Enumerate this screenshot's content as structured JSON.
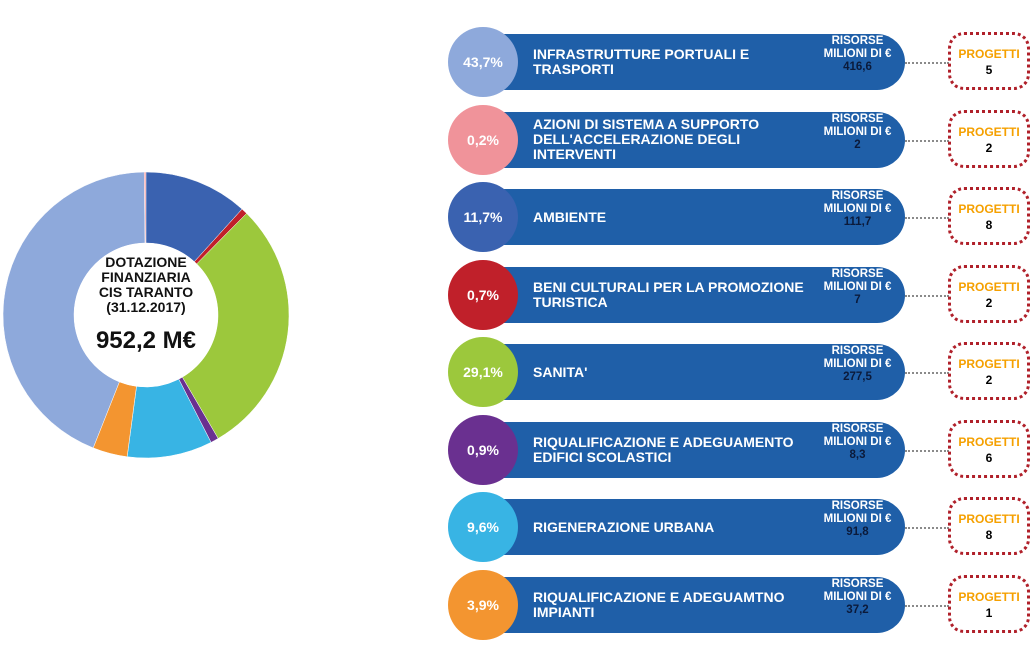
{
  "chart_data": {
    "type": "donut",
    "center_lines": [
      "DOTAZIONE",
      "FINANZIARIA",
      "CIS TARANTO",
      "(31.12.2017)"
    ],
    "center_value": "952,2 M€",
    "categories": [
      "INFRASTRUTTURE PORTUALI E TRASPORTI",
      "AZIONI DI SISTEMA A SUPPORTO DELL'ACCELERAZIONE DEGLI INTERVENTI",
      "AMBIENTE",
      "BENI CULTURALI PER LA PROMOZIONE TURISTICA",
      "SANITA'",
      "RIQUALIFICAZIONE E ADEGUAMENTO EDIFICI SCOLASTICI",
      "RIGENERAZIONE URBANA",
      "RIQUALIFICAZIONE E ADEGUAMTNO IMPIANTI"
    ],
    "values": [
      43.7,
      0.2,
      11.7,
      0.7,
      29.1,
      0.9,
      9.6,
      3.9
    ],
    "value_labels": [
      "43,7%",
      "0,2%",
      "11,7%",
      "0,7%",
      "29,1%",
      "0,9%",
      "9,6%",
      "3,9%"
    ],
    "colors": [
      "#8ea9db",
      "#f0939a",
      "#3a62b0",
      "#c0202a",
      "#9cc83c",
      "#6a3090",
      "#38b4e4",
      "#f39530"
    ],
    "resources_caption": [
      "RISORSE",
      "MILIONI DI €"
    ],
    "resources": [
      416.6,
      2,
      111.7,
      7,
      277.5,
      8.3,
      91.8,
      37.2
    ],
    "resources_labels": [
      "416,6",
      "2",
      "111,7",
      "7",
      "277,5",
      "8,3",
      "91,8",
      "37,2"
    ],
    "projects_caption": "PROGETTI",
    "projects": [
      5,
      2,
      8,
      2,
      2,
      6,
      8,
      1
    ]
  }
}
